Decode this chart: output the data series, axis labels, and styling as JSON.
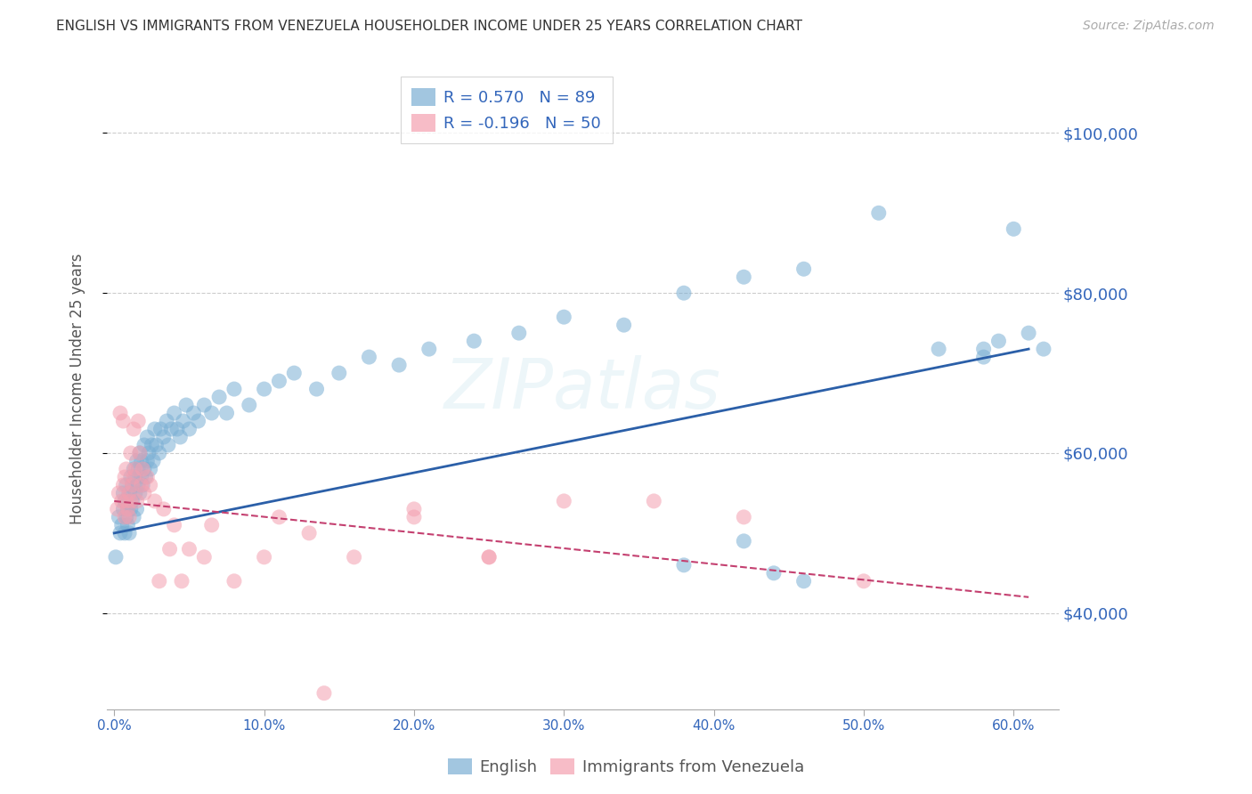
{
  "title": "ENGLISH VS IMMIGRANTS FROM VENEZUELA HOUSEHOLDER INCOME UNDER 25 YEARS CORRELATION CHART",
  "source": "Source: ZipAtlas.com",
  "ylabel": "Householder Income Under 25 years",
  "xlabel_ticks": [
    "0.0%",
    "10.0%",
    "20.0%",
    "30.0%",
    "40.0%",
    "50.0%",
    "60.0%"
  ],
  "xlabel_vals": [
    0.0,
    0.1,
    0.2,
    0.3,
    0.4,
    0.5,
    0.6
  ],
  "ytick_labels": [
    "$40,000",
    "$60,000",
    "$80,000",
    "$100,000"
  ],
  "ytick_vals": [
    40000,
    60000,
    80000,
    100000
  ],
  "ylim": [
    28000,
    108000
  ],
  "xlim": [
    -0.005,
    0.63
  ],
  "english_color": "#7BAFD4",
  "venezuela_color": "#F4A0B0",
  "english_line_color": "#2B5FA8",
  "venezuela_line_color": "#C44070",
  "watermark": "ZIPatlas",
  "english_x": [
    0.001,
    0.003,
    0.004,
    0.005,
    0.006,
    0.006,
    0.007,
    0.007,
    0.008,
    0.008,
    0.009,
    0.009,
    0.01,
    0.01,
    0.011,
    0.011,
    0.012,
    0.012,
    0.013,
    0.013,
    0.014,
    0.014,
    0.015,
    0.015,
    0.016,
    0.016,
    0.017,
    0.017,
    0.018,
    0.018,
    0.019,
    0.02,
    0.02,
    0.021,
    0.022,
    0.022,
    0.023,
    0.024,
    0.025,
    0.026,
    0.027,
    0.028,
    0.03,
    0.031,
    0.033,
    0.035,
    0.036,
    0.038,
    0.04,
    0.042,
    0.044,
    0.046,
    0.048,
    0.05,
    0.053,
    0.056,
    0.06,
    0.065,
    0.07,
    0.075,
    0.08,
    0.09,
    0.1,
    0.11,
    0.12,
    0.135,
    0.15,
    0.17,
    0.19,
    0.21,
    0.24,
    0.27,
    0.3,
    0.34,
    0.38,
    0.42,
    0.46,
    0.51,
    0.55,
    0.58,
    0.59,
    0.6,
    0.61,
    0.62,
    0.38,
    0.42,
    0.44,
    0.46,
    0.58
  ],
  "english_y": [
    47000,
    52000,
    50000,
    51000,
    53000,
    55000,
    50000,
    54000,
    52000,
    56000,
    51000,
    53000,
    50000,
    55000,
    53000,
    57000,
    54000,
    56000,
    52000,
    58000,
    55000,
    57000,
    53000,
    59000,
    56000,
    58000,
    55000,
    60000,
    57000,
    59000,
    56000,
    58000,
    61000,
    57000,
    59000,
    62000,
    60000,
    58000,
    61000,
    59000,
    63000,
    61000,
    60000,
    63000,
    62000,
    64000,
    61000,
    63000,
    65000,
    63000,
    62000,
    64000,
    66000,
    63000,
    65000,
    64000,
    66000,
    65000,
    67000,
    65000,
    68000,
    66000,
    68000,
    69000,
    70000,
    68000,
    70000,
    72000,
    71000,
    73000,
    74000,
    75000,
    77000,
    76000,
    80000,
    82000,
    83000,
    90000,
    73000,
    72000,
    74000,
    88000,
    75000,
    73000,
    46000,
    49000,
    45000,
    44000,
    73000
  ],
  "venezuela_x": [
    0.002,
    0.003,
    0.004,
    0.005,
    0.006,
    0.006,
    0.007,
    0.007,
    0.008,
    0.008,
    0.009,
    0.01,
    0.01,
    0.011,
    0.011,
    0.012,
    0.013,
    0.013,
    0.014,
    0.015,
    0.016,
    0.017,
    0.018,
    0.019,
    0.02,
    0.022,
    0.024,
    0.027,
    0.03,
    0.033,
    0.037,
    0.04,
    0.045,
    0.05,
    0.06,
    0.065,
    0.08,
    0.1,
    0.13,
    0.16,
    0.2,
    0.25,
    0.3,
    0.36,
    0.42,
    0.5,
    0.2,
    0.25,
    0.11,
    0.14
  ],
  "venezuela_y": [
    53000,
    55000,
    65000,
    54000,
    64000,
    56000,
    57000,
    52000,
    58000,
    54000,
    53000,
    55000,
    52000,
    54000,
    60000,
    56000,
    63000,
    57000,
    58000,
    54000,
    64000,
    60000,
    56000,
    58000,
    55000,
    57000,
    56000,
    54000,
    44000,
    53000,
    48000,
    51000,
    44000,
    48000,
    47000,
    51000,
    44000,
    47000,
    50000,
    47000,
    52000,
    47000,
    54000,
    54000,
    52000,
    44000,
    53000,
    47000,
    52000,
    30000
  ]
}
